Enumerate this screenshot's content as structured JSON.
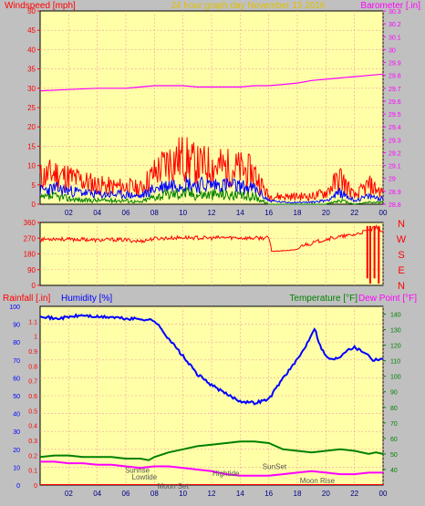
{
  "colors": {
    "background": "#c0c0c0",
    "plot_bg": "#ffffa8",
    "grid": "#f0a0a0",
    "wind": "#ff0000",
    "wind_avg": "#0000ff",
    "wind_min": "#008000",
    "barometer": "#ff00ff",
    "direction": "#ff0000",
    "humidity": "#0000ff",
    "temperature": "#008000",
    "dewpoint": "#ff00ff",
    "rain": "#ff0000",
    "tick_red": "#ff0000",
    "tick_magenta": "#ff00ff",
    "tick_blue": "#0000ff",
    "tick_green": "#008000",
    "annotation": "#555555",
    "time_axis": "#000080"
  },
  "header": {
    "windspeed_label": "Windspeed [mph]",
    "title": "24 hour graph day   November 15 2016",
    "barometer_label": "Barometer [.in]"
  },
  "middle": {
    "compass": [
      "N",
      "W",
      "S",
      "E",
      "N"
    ]
  },
  "bottom_header": {
    "rain_label": "Rainfall [.in]",
    "humidity_label": "Humidity [%]",
    "temperature_label": "Temperature [°F]",
    "dewpoint_label": "Dew Point [°F]"
  },
  "annotations": [
    {
      "text": "Sunrise",
      "x": 6.8,
      "y": 7
    },
    {
      "text": "Lowtide",
      "x": 7.3,
      "y": 3
    },
    {
      "text": "Moon Set",
      "x": 9.3,
      "y": -2
    },
    {
      "text": "Hightide",
      "x": 13.0,
      "y": 5
    },
    {
      "text": "SunSet",
      "x": 16.4,
      "y": 9
    },
    {
      "text": "Moon Rise",
      "x": 19.4,
      "y": 1
    }
  ],
  "chart_data": [
    {
      "type": "line",
      "x_ticks": [
        "02",
        "04",
        "06",
        "08",
        "10",
        "12",
        "14",
        "16",
        "18",
        "20",
        "22",
        "00"
      ],
      "x_range": [
        0,
        24
      ],
      "left_axis": {
        "ylim": [
          0,
          50
        ],
        "ticks": [
          0,
          5,
          10,
          15,
          20,
          25,
          30,
          35,
          40,
          45,
          50
        ]
      },
      "right_axis": {
        "ylim": [
          28.8,
          30.3
        ],
        "ticks": [
          "28.8",
          "28.9",
          "29",
          "29.1",
          "29.2",
          "29.3",
          "29.4",
          "29.5",
          "29.6",
          "29.7",
          "29.8",
          "29.9",
          "30",
          "30.1",
          "30.2",
          "30.3"
        ]
      },
      "grid": true,
      "series": [
        {
          "axis": "left",
          "style": "wind-max",
          "x": [
            0,
            1,
            2,
            3,
            4,
            5,
            6,
            7,
            8,
            9,
            10,
            11,
            12,
            13,
            14,
            15,
            16,
            17,
            18,
            19,
            20,
            21,
            22,
            23,
            24
          ],
          "values": [
            7,
            8,
            7,
            6,
            5,
            4.5,
            4.5,
            4,
            8,
            11,
            12,
            10,
            10,
            9.5,
            9,
            8,
            2,
            2,
            2,
            2,
            3,
            7,
            2,
            5,
            3
          ]
        },
        {
          "axis": "left",
          "style": "wind-avg",
          "x": [
            0,
            1,
            2,
            3,
            4,
            5,
            6,
            7,
            8,
            9,
            10,
            11,
            12,
            13,
            14,
            15,
            16,
            17,
            18,
            19,
            20,
            21,
            22,
            23,
            24
          ],
          "values": [
            3.5,
            4,
            3.5,
            3,
            2.5,
            2.5,
            2.5,
            2,
            4,
            5,
            5.5,
            5,
            5,
            5,
            4.5,
            4,
            1,
            0.5,
            0.5,
            0.5,
            1,
            3,
            1,
            2,
            1.5
          ]
        },
        {
          "axis": "left",
          "style": "wind-min",
          "x": [
            0,
            1,
            2,
            3,
            4,
            5,
            6,
            7,
            8,
            9,
            10,
            11,
            12,
            13,
            14,
            15,
            16,
            17,
            18,
            19,
            20,
            21,
            22,
            23,
            24
          ],
          "values": [
            1.5,
            2,
            1.5,
            1,
            1,
            1,
            1,
            0.5,
            2,
            2.5,
            3,
            2.5,
            2.5,
            2.5,
            2,
            2,
            0,
            0,
            0,
            0,
            0,
            1,
            0,
            0.5,
            0.5
          ]
        },
        {
          "axis": "right",
          "style": "barometer",
          "x": [
            0,
            2,
            4,
            6,
            7,
            8,
            9,
            10,
            11,
            12,
            13,
            14,
            15,
            16,
            17,
            18,
            19,
            20,
            21,
            22,
            23,
            24
          ],
          "values": [
            29.68,
            29.69,
            29.7,
            29.7,
            29.71,
            29.72,
            29.72,
            29.72,
            29.71,
            29.71,
            29.71,
            29.71,
            29.72,
            29.72,
            29.73,
            29.74,
            29.76,
            29.77,
            29.78,
            29.79,
            29.8,
            29.81
          ]
        }
      ]
    },
    {
      "type": "line",
      "x_range": [
        0,
        24
      ],
      "left_axis": {
        "ylim": [
          0,
          360
        ],
        "ticks": [
          0,
          90,
          180,
          270,
          360
        ]
      },
      "grid": true,
      "series": [
        {
          "style": "direction",
          "x": [
            0,
            1,
            2,
            3,
            4,
            5,
            6,
            7,
            8,
            9,
            10,
            11,
            12,
            13,
            14,
            15,
            16,
            16.2,
            17,
            18,
            18.4,
            19,
            20,
            21,
            22,
            22.8,
            23.2,
            23.6,
            24
          ],
          "values": [
            262,
            268,
            262,
            264,
            258,
            262,
            260,
            252,
            268,
            270,
            274,
            272,
            270,
            274,
            272,
            270,
            272,
            195,
            198,
            205,
            232,
            240,
            265,
            278,
            290,
            310,
            320,
            335,
            305
          ]
        }
      ]
    },
    {
      "type": "line",
      "x_ticks": [
        "02",
        "04",
        "06",
        "08",
        "10",
        "12",
        "14",
        "16",
        "18",
        "20",
        "22",
        "00"
      ],
      "x_range": [
        0,
        24
      ],
      "rain_axis": {
        "ylim": [
          0,
          1.2
        ],
        "ticks": [
          "0",
          "0.1",
          "0.2",
          "0.3",
          "0.4",
          "0.5",
          "0.6",
          "0.7",
          "0.8",
          "0.9",
          "1",
          "1.1"
        ]
      },
      "humidity_axis": {
        "ylim": [
          0,
          100
        ],
        "ticks": [
          0,
          10,
          20,
          30,
          40,
          50,
          60,
          70,
          80,
          90,
          100
        ]
      },
      "temp_axis": {
        "ylim": [
          30,
          145
        ],
        "ticks": [
          40,
          50,
          60,
          70,
          80,
          90,
          100,
          110,
          120,
          130,
          140
        ]
      },
      "grid": true,
      "series": [
        {
          "axis": "humidity",
          "style": "humidity",
          "x": [
            0,
            1,
            2,
            3,
            4,
            5,
            6,
            7,
            8,
            8.5,
            9,
            10,
            11,
            12,
            13,
            14,
            15,
            16,
            16.5,
            17,
            18,
            18.6,
            19.2,
            19.6,
            20,
            20.5,
            21,
            21.5,
            22,
            22.8,
            23.3,
            24
          ],
          "values": [
            95,
            93,
            94,
            95,
            94,
            94,
            93,
            93,
            92,
            87,
            82,
            72,
            62,
            56,
            51,
            47,
            46,
            48,
            54,
            60,
            70,
            78,
            88,
            78,
            72,
            70,
            72,
            76,
            77,
            74,
            70,
            71
          ]
        },
        {
          "axis": "temp",
          "style": "temperature",
          "x": [
            0,
            1,
            2,
            3,
            4,
            5,
            6,
            7,
            7.6,
            8,
            9,
            10,
            11,
            12,
            13,
            14,
            15,
            16,
            17,
            18,
            19,
            20,
            21,
            22,
            23,
            23.5,
            24
          ],
          "values": [
            48,
            49,
            49,
            48,
            48,
            48,
            47,
            47,
            46,
            48,
            51,
            53,
            55,
            56,
            57,
            58,
            58,
            57,
            53,
            52,
            51,
            52,
            53,
            52,
            50,
            51,
            50
          ]
        },
        {
          "axis": "temp",
          "style": "dewpoint",
          "x": [
            0,
            1,
            2,
            3,
            4,
            5,
            6,
            7,
            8,
            9,
            10,
            11,
            12,
            13,
            14,
            15,
            16,
            17,
            18,
            19,
            20,
            21,
            22,
            23,
            24
          ],
          "values": [
            45,
            45,
            44,
            44,
            43,
            43,
            42,
            41,
            42,
            42,
            41,
            40,
            39,
            37,
            36,
            36,
            36,
            37,
            38,
            39,
            38,
            37,
            37,
            38,
            38
          ]
        },
        {
          "axis": "rain",
          "style": "rain",
          "x": [
            0,
            24
          ],
          "values": [
            0,
            0
          ]
        }
      ]
    }
  ]
}
